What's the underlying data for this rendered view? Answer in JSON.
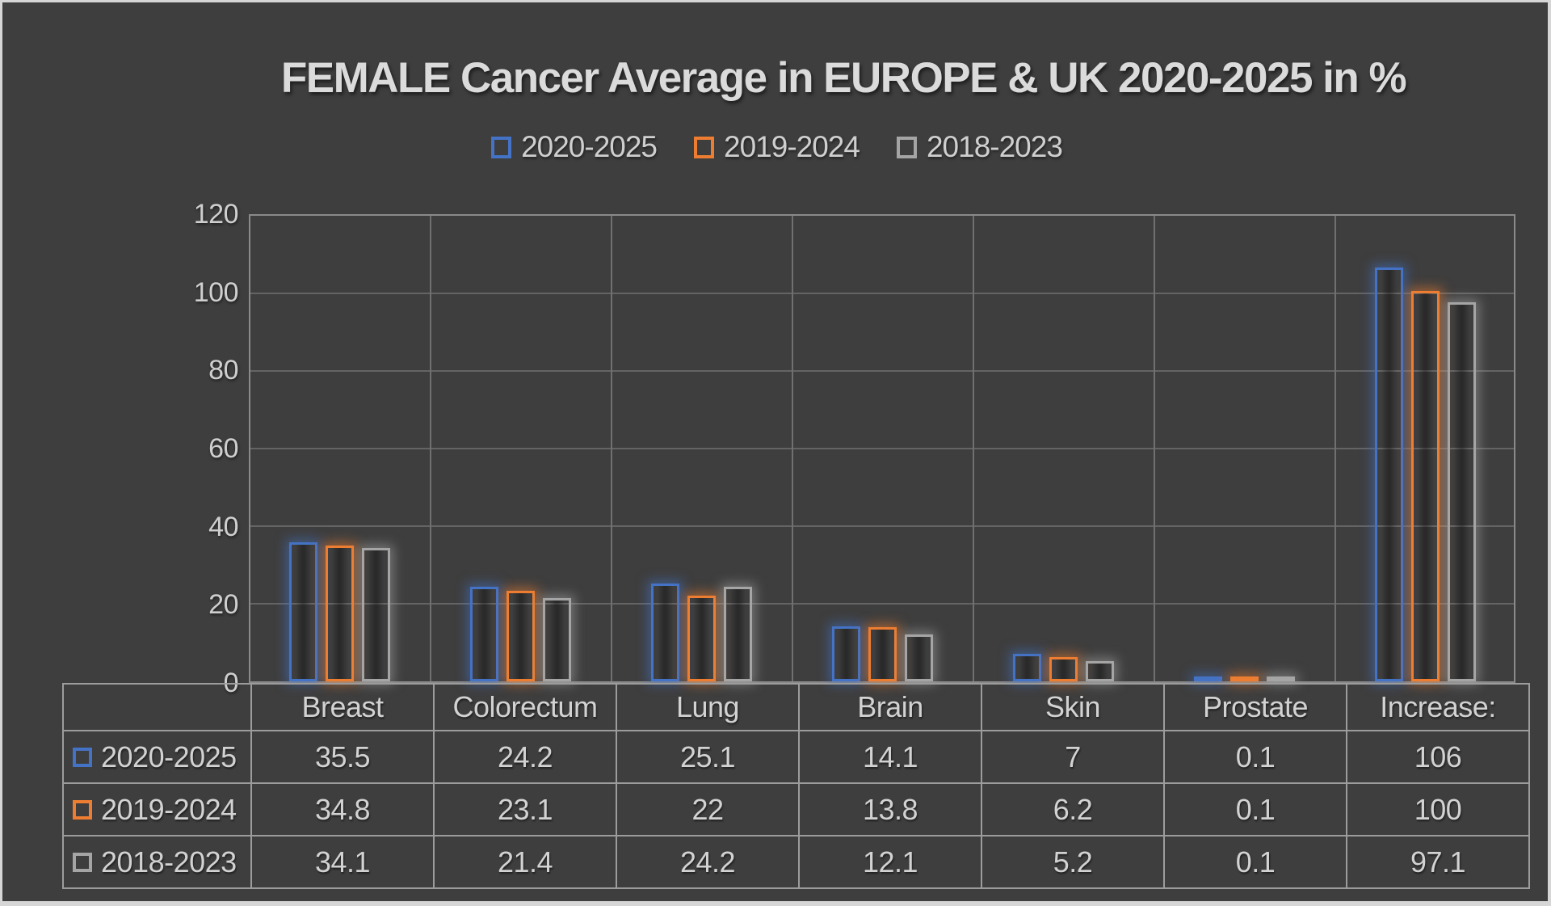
{
  "title": "FEMALE Cancer Average in EUROPE & UK 2020-2025 in %",
  "colors": {
    "background": "#3E3E3E",
    "frame": "#D6D6D6",
    "text": "#D2D2D2",
    "title_text": "#DBDBDB",
    "gridline_horizontal": "#646464",
    "gridline_vertical": "#707070",
    "plot_border": "#8A8A8A",
    "table_border": "#9C9C9C",
    "series": [
      "#4472C4",
      "#ED7D31",
      "#A5A5A5"
    ]
  },
  "chart_data": {
    "type": "bar",
    "title": "FEMALE Cancer Average in EUROPE & UK 2020-2025 in %",
    "categories": [
      "Breast",
      "Colorectum",
      "Lung",
      "Brain",
      "Skin",
      "Prostate",
      "Increase:"
    ],
    "series": [
      {
        "name": "2020-2025",
        "color": "#4472C4",
        "values": [
          35.5,
          24.2,
          25.1,
          14.1,
          7,
          0.1,
          106
        ]
      },
      {
        "name": "2019-2024",
        "color": "#ED7D31",
        "values": [
          34.8,
          23.1,
          22,
          13.8,
          6.2,
          0.1,
          100
        ]
      },
      {
        "name": "2018-2023",
        "color": "#A5A5A5",
        "values": [
          34.1,
          21.4,
          24.2,
          12.1,
          5.2,
          0.1,
          97.1
        ]
      }
    ],
    "xlabel": "",
    "ylabel": "",
    "ylim": [
      0,
      120
    ],
    "yticks": [
      0,
      20,
      40,
      60,
      80,
      100,
      120
    ],
    "grid": true,
    "legend_position": "top",
    "data_table_shown": true,
    "bar_style": "hollow-outline-with-glow"
  }
}
